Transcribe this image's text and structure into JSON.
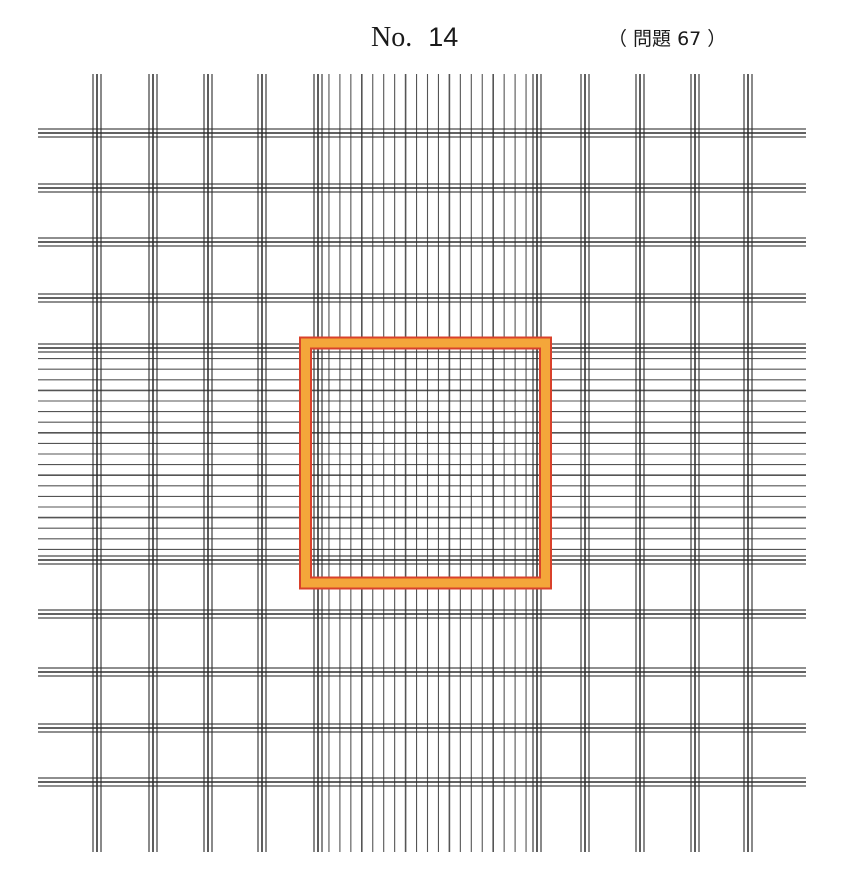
{
  "header": {
    "figure_label": "No.",
    "figure_number": "14",
    "reference": "（ 問題 67 ）"
  },
  "grid": {
    "description_colors": {
      "line": "#2b2b2b",
      "highlight_outer": "#d9412b",
      "highlight_fill": "#f4a63a"
    }
  }
}
